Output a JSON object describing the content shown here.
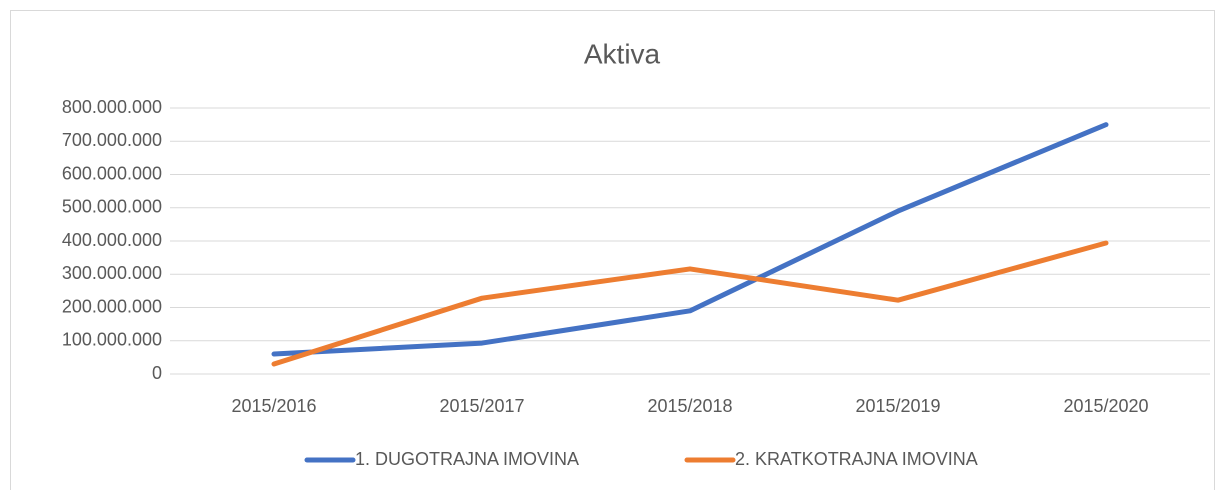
{
  "chart_data": {
    "type": "line",
    "title": "Aktiva",
    "categories": [
      "2015/2016",
      "2015/2017",
      "2015/2018",
      "2015/2019",
      "2015/2020"
    ],
    "series": [
      {
        "name": "1. DUGOTRAJNA IMOVINA",
        "color": "#4472c4",
        "values": [
          60000000,
          93000000,
          190000000,
          490000000,
          750000000
        ]
      },
      {
        "name": "2. KRATKOTRAJNA IMOVINA",
        "color": "#ed7d31",
        "values": [
          30000000,
          228000000,
          316000000,
          222000000,
          394000000
        ]
      }
    ],
    "ylim": [
      0,
      800000000
    ],
    "yticks": [
      {
        "value": 0,
        "label": "0"
      },
      {
        "value": 100000000,
        "label": "100.000.000"
      },
      {
        "value": 200000000,
        "label": "200.000.000"
      },
      {
        "value": 300000000,
        "label": "300.000.000"
      },
      {
        "value": 400000000,
        "label": "400.000.000"
      },
      {
        "value": 500000000,
        "label": "500.000.000"
      },
      {
        "value": 600000000,
        "label": "600.000.000"
      },
      {
        "value": 700000000,
        "label": "700.000.000"
      },
      {
        "value": 800000000,
        "label": "800.000.000"
      }
    ],
    "grid": true,
    "legend": "bottom"
  }
}
